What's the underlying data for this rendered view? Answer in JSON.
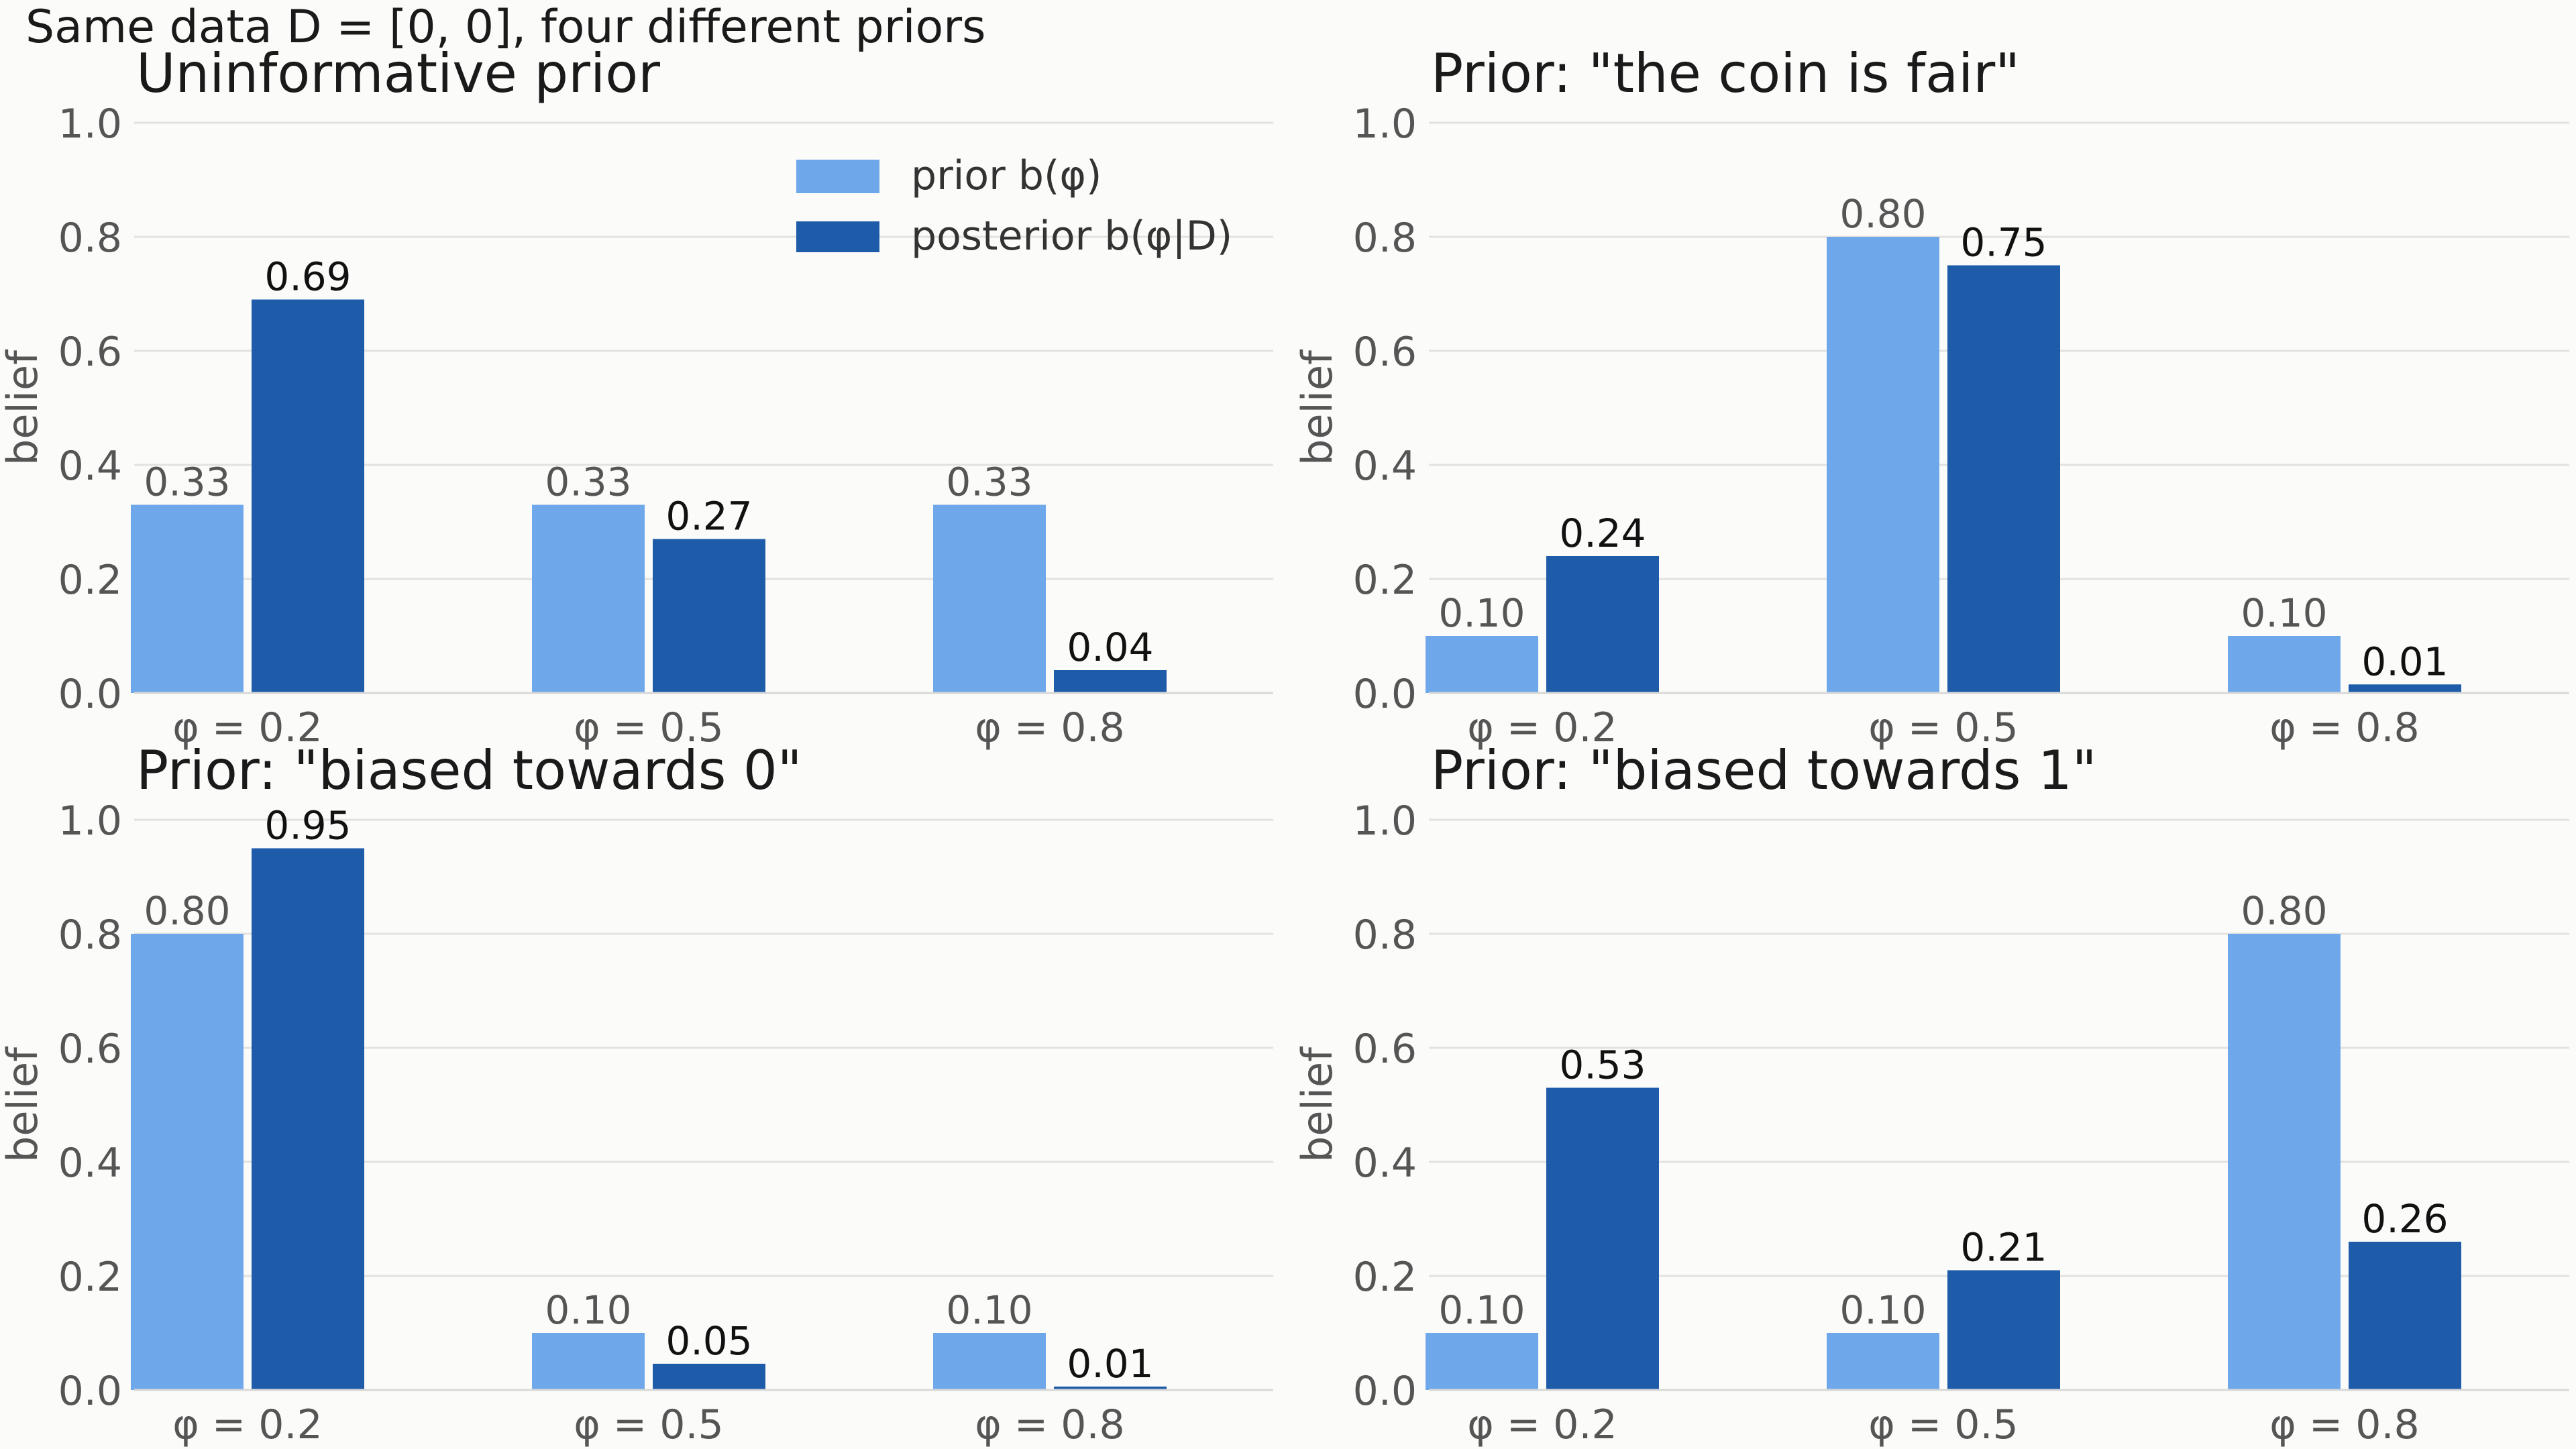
{
  "suptitle": "Same data D = [0, 0], four different priors",
  "colors": {
    "prior": "#6ea8ea",
    "posterior": "#1e5caa",
    "grid": "#e2e2e0",
    "axis_text": "#555555",
    "title_text": "#1a1a1a",
    "background": "#fbfbf9"
  },
  "legend": {
    "prior_label": "prior b(φ)",
    "posterior_label": "posterior b(φ|D)"
  },
  "chart_data": [
    {
      "type": "bar",
      "title": "Uninformative prior",
      "ylabel": "belief",
      "ylim": [
        0,
        1
      ],
      "yticks": [
        "0.0",
        "0.2",
        "0.4",
        "0.6",
        "0.8",
        "1.0"
      ],
      "categories": [
        "φ = 0.2",
        "φ = 0.5",
        "φ = 0.8"
      ],
      "grid": true,
      "legend_position": "top-right",
      "series": [
        {
          "name": "prior b(φ)",
          "values": [
            0.33,
            0.33,
            0.33
          ],
          "labels": [
            "0.33",
            "0.33",
            "0.33"
          ]
        },
        {
          "name": "posterior b(φ|D)",
          "values": [
            0.69,
            0.27,
            0.04
          ],
          "labels": [
            "0.69",
            "0.27",
            "0.04"
          ]
        }
      ]
    },
    {
      "type": "bar",
      "title": "Prior: \"the coin is fair\"",
      "ylabel": "belief",
      "ylim": [
        0,
        1
      ],
      "yticks": [
        "0.0",
        "0.2",
        "0.4",
        "0.6",
        "0.8",
        "1.0"
      ],
      "categories": [
        "φ = 0.2",
        "φ = 0.5",
        "φ = 0.8"
      ],
      "grid": true,
      "series": [
        {
          "name": "prior b(φ)",
          "values": [
            0.1,
            0.8,
            0.1
          ],
          "labels": [
            "0.10",
            "0.80",
            "0.10"
          ]
        },
        {
          "name": "posterior b(φ|D)",
          "values": [
            0.24,
            0.75,
            0.015
          ],
          "labels": [
            "0.24",
            "0.75",
            "0.01"
          ]
        }
      ]
    },
    {
      "type": "bar",
      "title": "Prior: \"biased towards 0\"",
      "ylabel": "belief",
      "ylim": [
        0,
        1
      ],
      "yticks": [
        "0.0",
        "0.2",
        "0.4",
        "0.6",
        "0.8",
        "1.0"
      ],
      "categories": [
        "φ = 0.2",
        "φ = 0.5",
        "φ = 0.8"
      ],
      "grid": true,
      "series": [
        {
          "name": "prior b(φ)",
          "values": [
            0.8,
            0.1,
            0.1
          ],
          "labels": [
            "0.80",
            "0.10",
            "0.10"
          ]
        },
        {
          "name": "posterior b(φ|D)",
          "values": [
            0.95,
            0.046,
            0.006
          ],
          "labels": [
            "0.95",
            "0.05",
            "0.01"
          ]
        }
      ]
    },
    {
      "type": "bar",
      "title": "Prior: \"biased towards 1\"",
      "ylabel": "belief",
      "ylim": [
        0,
        1
      ],
      "yticks": [
        "0.0",
        "0.2",
        "0.4",
        "0.6",
        "0.8",
        "1.0"
      ],
      "categories": [
        "φ = 0.2",
        "φ = 0.5",
        "φ = 0.8"
      ],
      "grid": true,
      "series": [
        {
          "name": "prior b(φ)",
          "values": [
            0.1,
            0.1,
            0.8
          ],
          "labels": [
            "0.10",
            "0.10",
            "0.80"
          ]
        },
        {
          "name": "posterior b(φ|D)",
          "values": [
            0.53,
            0.21,
            0.26
          ],
          "labels": [
            "0.53",
            "0.21",
            "0.26"
          ]
        }
      ]
    }
  ]
}
